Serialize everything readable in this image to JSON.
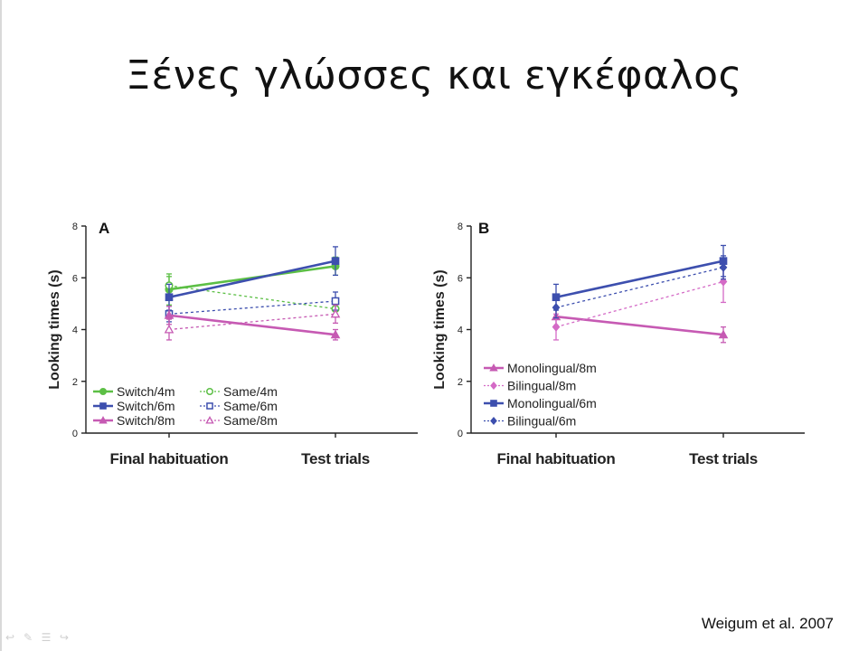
{
  "slide": {
    "title": "Ξένες γλώσσες και εγκέφαλος",
    "citation": "Weigum et al. 2007"
  },
  "colors": {
    "green": "#5cbf45",
    "blue": "#3d4fae",
    "magenta": "#c65ab3",
    "pink": "#d46ac6",
    "axis": "#222222"
  },
  "nav_icons": [
    "back-arrow-icon",
    "pen-icon",
    "menu-icon",
    "forward-arrow-icon"
  ],
  "chart_data": [
    {
      "type": "line",
      "panel_label": "A",
      "ylabel": "Looking times (s)",
      "categories": [
        "Final habituation",
        "Test trials"
      ],
      "ylim": [
        0,
        8
      ],
      "yticks": [
        "0",
        "2",
        "4",
        "6",
        "8"
      ],
      "legend_position": "bottom-left",
      "series": [
        {
          "name": "Switch/4m",
          "values": [
            5.55,
            6.45
          ],
          "err": [
            0.6,
            0.35
          ],
          "color": "#5cbf45",
          "dash": false,
          "marker": "circle",
          "filled": true
        },
        {
          "name": "Same/4m",
          "values": [
            5.7,
            4.8
          ],
          "err": [
            0.35,
            0.3
          ],
          "color": "#5cbf45",
          "dash": true,
          "marker": "circle",
          "filled": false
        },
        {
          "name": "Switch/6m",
          "values": [
            5.25,
            6.65
          ],
          "err": [
            0.5,
            0.55
          ],
          "color": "#3d4fae",
          "dash": false,
          "marker": "square",
          "filled": true
        },
        {
          "name": "Same/6m",
          "values": [
            4.6,
            5.1
          ],
          "err": [
            0.3,
            0.35
          ],
          "color": "#3d4fae",
          "dash": true,
          "marker": "square",
          "filled": false
        },
        {
          "name": "Switch/8m",
          "values": [
            4.55,
            3.8
          ],
          "err": [
            0.35,
            0.2
          ],
          "color": "#c65ab3",
          "dash": false,
          "marker": "triangle",
          "filled": true
        },
        {
          "name": "Same/8m",
          "values": [
            4.0,
            4.6
          ],
          "err": [
            0.4,
            0.35
          ],
          "color": "#c65ab3",
          "dash": true,
          "marker": "triangle",
          "filled": false
        }
      ]
    },
    {
      "type": "line",
      "panel_label": "B",
      "ylabel": "Looking times (s)",
      "categories": [
        "Final habituation",
        "Test trials"
      ],
      "ylim": [
        0,
        8
      ],
      "yticks": [
        "0",
        "2",
        "4",
        "6",
        "8"
      ],
      "legend_position": "bottom-left",
      "series": [
        {
          "name": "Monolingual/8m",
          "values": [
            4.5,
            3.8
          ],
          "err": [
            0.35,
            0.3
          ],
          "color": "#c65ab3",
          "dash": false,
          "marker": "triangle",
          "filled": true
        },
        {
          "name": "Bilingual/8m",
          "values": [
            4.1,
            5.85
          ],
          "err": [
            0.5,
            0.8
          ],
          "color": "#d46ac6",
          "dash": true,
          "marker": "diamond",
          "filled": true
        },
        {
          "name": "Monolingual/6m",
          "values": [
            5.25,
            6.65
          ],
          "err": [
            0.5,
            0.6
          ],
          "color": "#3d4fae",
          "dash": false,
          "marker": "square",
          "filled": true
        },
        {
          "name": "Bilingual/6m",
          "values": [
            4.85,
            6.4
          ],
          "err": [
            0.4,
            0.45
          ],
          "color": "#3d4fae",
          "dash": true,
          "marker": "diamond",
          "filled": true
        }
      ]
    }
  ]
}
